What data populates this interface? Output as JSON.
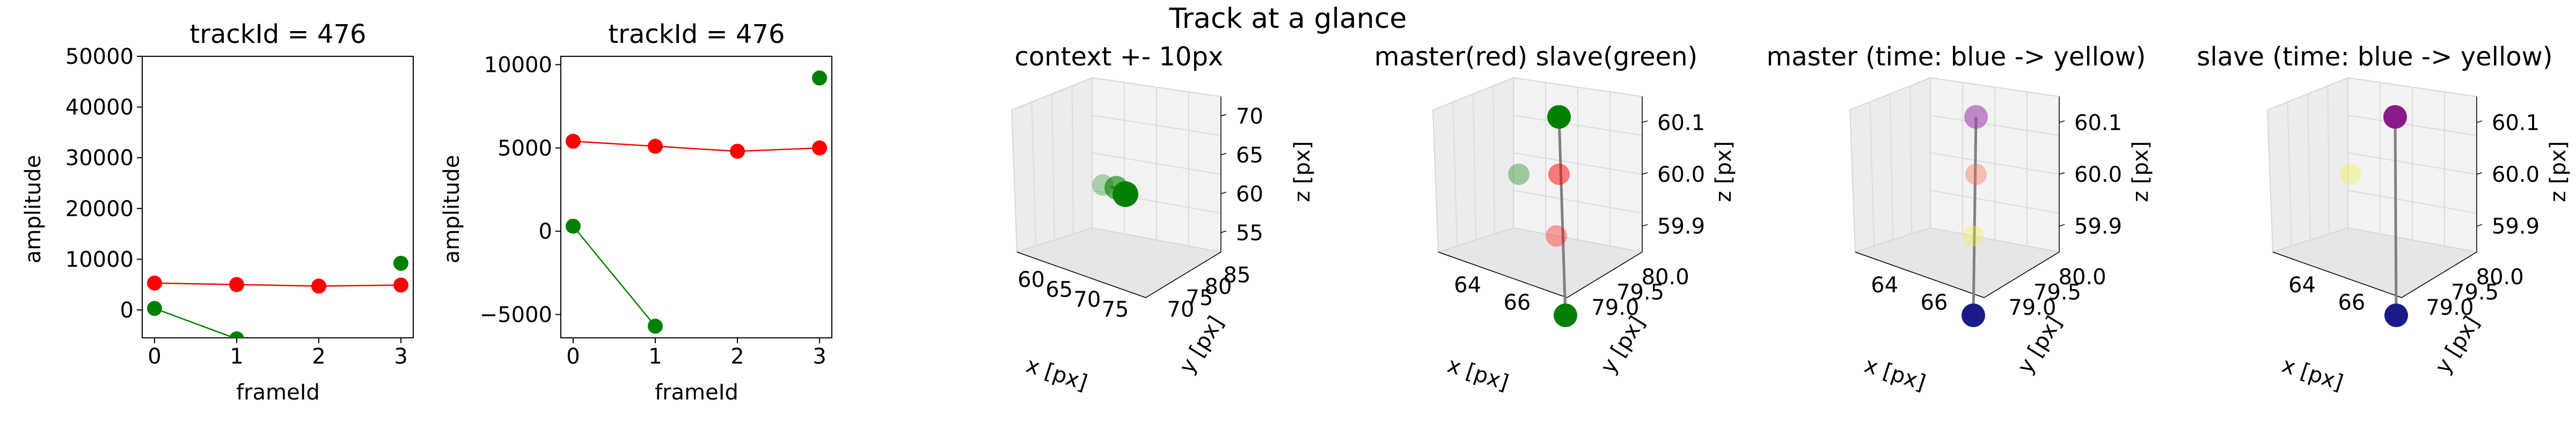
{
  "figure": {
    "suptitle": "Track at a glance"
  },
  "chart_data": [
    {
      "type": "line",
      "title": "trackId = 476",
      "xlabel": "frameId",
      "ylabel": "amplitude",
      "xlim": [
        -0.15,
        3.15
      ],
      "ylim": [
        -5500,
        50000
      ],
      "xticks": [
        "0",
        "1",
        "2",
        "3"
      ],
      "yticks": [
        "0",
        "10000",
        "20000",
        "30000",
        "40000",
        "50000"
      ],
      "series": [
        {
          "color": "#ff0000",
          "x": [
            0,
            1,
            2,
            3
          ],
          "y": [
            5300,
            5000,
            4700,
            4900
          ]
        },
        {
          "color": "#008000",
          "x": [
            0,
            1
          ],
          "y": [
            300,
            -5700
          ],
          "extra": {
            "x": 3,
            "y": 9200
          }
        }
      ]
    },
    {
      "type": "line",
      "title": "trackId = 476",
      "xlabel": "frameId",
      "ylabel": "amplitude",
      "xlim": [
        -0.15,
        3.15
      ],
      "ylim": [
        -6400,
        10500
      ],
      "xticks": [
        "0",
        "1",
        "2",
        "3"
      ],
      "yticks": [
        "−5000",
        "0",
        "5000",
        "10000"
      ],
      "series": [
        {
          "color": "#ff0000",
          "x": [
            0,
            1,
            2,
            3
          ],
          "y": [
            5400,
            5100,
            4800,
            5000
          ]
        },
        {
          "color": "#008000",
          "x": [
            0,
            1
          ],
          "y": [
            300,
            -5700
          ],
          "extra": {
            "x": 3,
            "y": 9200
          }
        }
      ]
    },
    {
      "type": "scatter",
      "subtype": "3d",
      "title": "context +- 10px",
      "xlabel": "x [px]",
      "ylabel": "y [px]",
      "zlabel": "z [px]",
      "xticks": [
        "60",
        "65",
        "70",
        "75"
      ],
      "yticks": [
        "70",
        "75",
        "80",
        "85"
      ],
      "zticks": [
        "55",
        "60",
        "65",
        "70"
      ],
      "points": [
        {
          "color": "#008000",
          "alpha": 0.3
        },
        {
          "color": "#008000",
          "alpha": 0.6
        },
        {
          "color": "#008000",
          "alpha": 1.0
        }
      ]
    },
    {
      "type": "scatter",
      "subtype": "3d",
      "title": "master(red) slave(green)",
      "xlabel": "x [px]",
      "ylabel": "y [px]",
      "zlabel": "z [px]",
      "xticks": [
        "64",
        "66"
      ],
      "yticks": [
        "79.0",
        "79.5",
        "80.0"
      ],
      "zticks": [
        "59.9",
        "60.0",
        "60.1"
      ],
      "points": [
        {
          "color": "#008000",
          "alpha": 1.0
        },
        {
          "color": "#ff0000",
          "alpha": 0.5
        },
        {
          "color": "#ff0000",
          "alpha": 0.35
        },
        {
          "color": "#008000",
          "alpha": 1.0
        },
        {
          "color": "#008000",
          "alpha": 0.35
        }
      ]
    },
    {
      "type": "scatter",
      "subtype": "3d",
      "title": "master (time: blue -> yellow)",
      "xlabel": "x [px]",
      "ylabel": "y [px]",
      "zlabel": "z [px]",
      "xticks": [
        "64",
        "66"
      ],
      "yticks": [
        "79.0",
        "79.5",
        "80.0"
      ],
      "zticks": [
        "59.9",
        "60.0",
        "60.1"
      ],
      "points": [
        {
          "color": "#a040b0",
          "alpha": 0.6
        },
        {
          "color": "#f07050",
          "alpha": 0.4
        },
        {
          "color": "#f0f040",
          "alpha": 0.35
        },
        {
          "color": "#1a1a8a",
          "alpha": 1.0
        }
      ]
    },
    {
      "type": "scatter",
      "subtype": "3d",
      "title": "slave (time: blue -> yellow)",
      "xlabel": "x [px]",
      "ylabel": "y [px]",
      "zlabel": "z [px]",
      "xticks": [
        "64",
        "66"
      ],
      "yticks": [
        "79.0",
        "79.5",
        "80.0"
      ],
      "zticks": [
        "59.9",
        "60.0",
        "60.1"
      ],
      "points": [
        {
          "color": "#8a1a8a",
          "alpha": 1.0
        },
        {
          "color": "#f0f040",
          "alpha": 0.35
        },
        {
          "color": "#1a1a8a",
          "alpha": 1.0
        }
      ]
    }
  ]
}
